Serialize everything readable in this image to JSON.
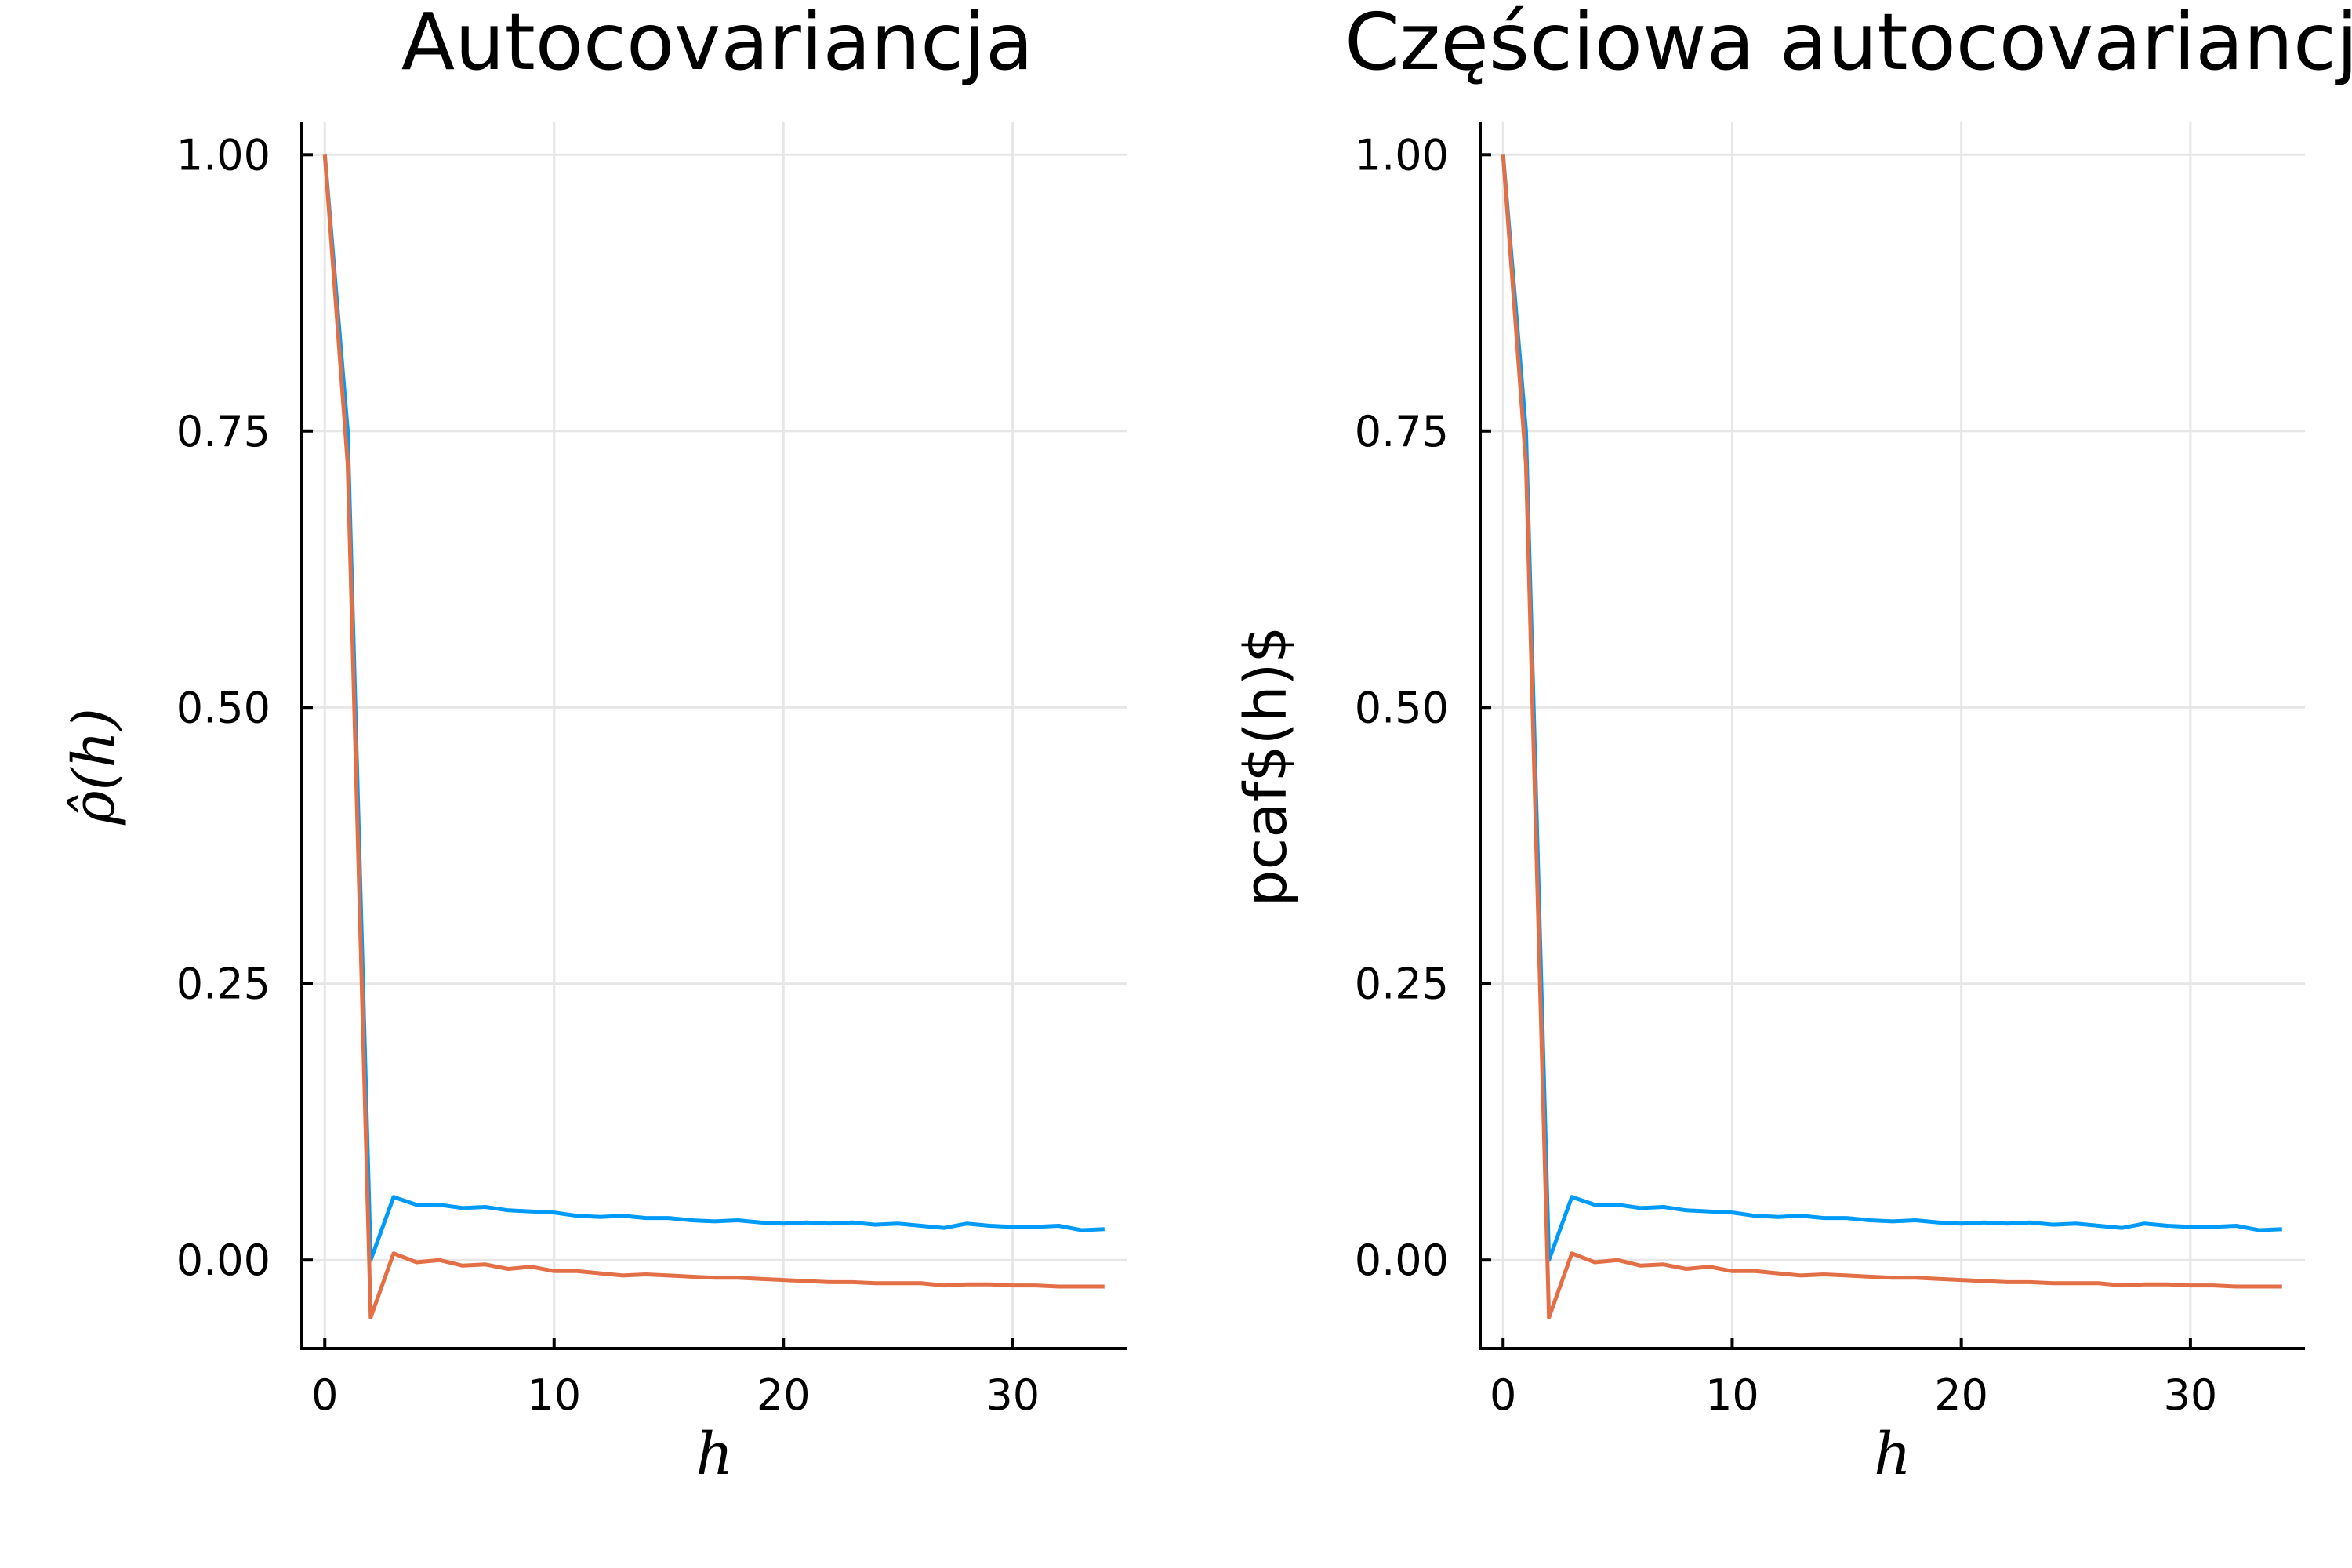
{
  "chart_data": [
    {
      "type": "line",
      "title": "Autocovariancja",
      "xlabel": "h",
      "ylabel": "ρ̂(h)",
      "xlim": [
        -1,
        35
      ],
      "ylim": [
        -0.08,
        1.03
      ],
      "xticks": [
        0,
        10,
        20,
        30
      ],
      "xtick_labels": [
        "0",
        "10",
        "20",
        "30"
      ],
      "yticks": [
        0.0,
        0.25,
        0.5,
        0.75,
        1.0
      ],
      "ytick_labels": [
        "0.00",
        "0.25",
        "0.50",
        "0.75",
        "1.00"
      ],
      "grid": true,
      "x": [
        0,
        1,
        2,
        3,
        4,
        5,
        6,
        7,
        8,
        9,
        10,
        11,
        12,
        13,
        14,
        15,
        16,
        17,
        18,
        19,
        20,
        21,
        22,
        23,
        24,
        25,
        26,
        27,
        28,
        29,
        30,
        31,
        32,
        33,
        34
      ],
      "series": [
        {
          "color": "#009af9",
          "values": [
            1.0,
            0.75,
            0.0,
            0.057,
            0.05,
            0.05,
            0.047,
            0.048,
            0.045,
            0.044,
            0.043,
            0.04,
            0.039,
            0.04,
            0.038,
            0.038,
            0.036,
            0.035,
            0.036,
            0.034,
            0.033,
            0.034,
            0.033,
            0.034,
            0.032,
            0.033,
            0.031,
            0.029,
            0.033,
            0.031,
            0.03,
            0.03,
            0.031,
            0.027,
            0.028
          ]
        },
        {
          "color": "#e26f46",
          "values": [
            1.0,
            0.72,
            -0.052,
            0.006,
            -0.002,
            0.0,
            -0.005,
            -0.004,
            -0.008,
            -0.006,
            -0.01,
            -0.01,
            -0.012,
            -0.014,
            -0.013,
            -0.014,
            -0.015,
            -0.016,
            -0.016,
            -0.017,
            -0.018,
            -0.019,
            -0.02,
            -0.02,
            -0.021,
            -0.021,
            -0.021,
            -0.023,
            -0.022,
            -0.022,
            -0.023,
            -0.023,
            -0.024,
            -0.024,
            -0.024
          ]
        }
      ]
    },
    {
      "type": "line",
      "title": "Częściowa autocovariancja",
      "xlabel": "h",
      "ylabel": "pcaf$(h)$",
      "xlim": [
        -1,
        35
      ],
      "ylim": [
        -0.08,
        1.03
      ],
      "xticks": [
        0,
        10,
        20,
        30
      ],
      "xtick_labels": [
        "0",
        "10",
        "20",
        "30"
      ],
      "yticks": [
        0.0,
        0.25,
        0.5,
        0.75,
        1.0
      ],
      "ytick_labels": [
        "0.00",
        "0.25",
        "0.50",
        "0.75",
        "1.00"
      ],
      "grid": true,
      "x": [
        0,
        1,
        2,
        3,
        4,
        5,
        6,
        7,
        8,
        9,
        10,
        11,
        12,
        13,
        14,
        15,
        16,
        17,
        18,
        19,
        20,
        21,
        22,
        23,
        24,
        25,
        26,
        27,
        28,
        29,
        30,
        31,
        32,
        33,
        34
      ],
      "series": [
        {
          "color": "#009af9",
          "values": [
            1.0,
            0.75,
            0.0,
            0.057,
            0.05,
            0.05,
            0.047,
            0.048,
            0.045,
            0.044,
            0.043,
            0.04,
            0.039,
            0.04,
            0.038,
            0.038,
            0.036,
            0.035,
            0.036,
            0.034,
            0.033,
            0.034,
            0.033,
            0.034,
            0.032,
            0.033,
            0.031,
            0.029,
            0.033,
            0.031,
            0.03,
            0.03,
            0.031,
            0.027,
            0.028
          ]
        },
        {
          "color": "#e26f46",
          "values": [
            1.0,
            0.72,
            -0.052,
            0.006,
            -0.002,
            0.0,
            -0.005,
            -0.004,
            -0.008,
            -0.006,
            -0.01,
            -0.01,
            -0.012,
            -0.014,
            -0.013,
            -0.014,
            -0.015,
            -0.016,
            -0.016,
            -0.017,
            -0.018,
            -0.019,
            -0.02,
            -0.02,
            -0.021,
            -0.021,
            -0.021,
            -0.023,
            -0.022,
            -0.022,
            -0.023,
            -0.023,
            -0.024,
            -0.024,
            -0.024
          ]
        }
      ]
    }
  ]
}
